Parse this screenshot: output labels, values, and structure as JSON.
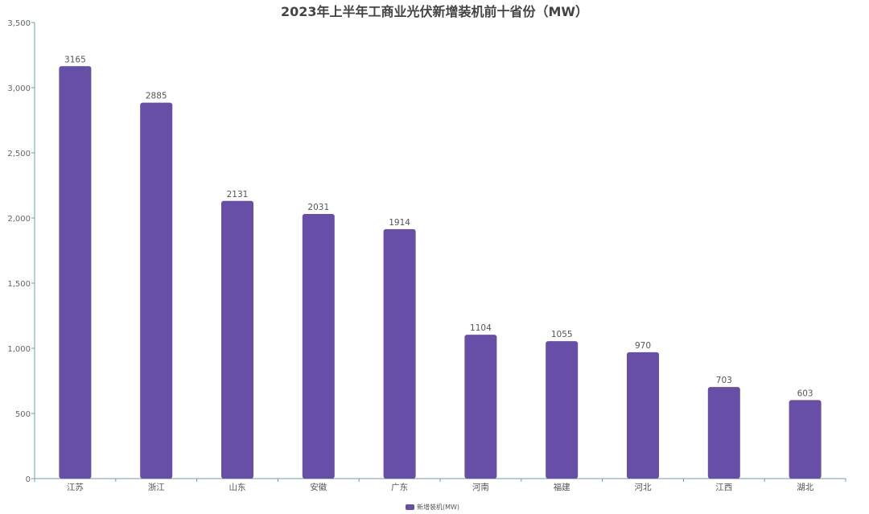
{
  "chart_data": {
    "type": "bar",
    "title": "2023年上半年工商业光伏新增装机前十省份（MW）",
    "categories": [
      "江苏",
      "浙江",
      "山东",
      "安徽",
      "广东",
      "河南",
      "福建",
      "河北",
      "江西",
      "湖北"
    ],
    "series": [
      {
        "name": "新增装机(MW)",
        "values": [
          3165,
          2885,
          2131,
          2031,
          1914,
          1104,
          1055,
          970,
          703,
          603
        ]
      }
    ],
    "ylim": [
      0,
      3500
    ],
    "yticks": [
      0,
      500,
      1000,
      1500,
      2000,
      2500,
      3000,
      3500
    ],
    "ytick_labels": [
      "0",
      "500",
      "1,000",
      "1,500",
      "2,000",
      "2,500",
      "3,000",
      "3,500"
    ],
    "grid": false,
    "legend": "bottom-center",
    "bar_color": "#674ea7",
    "axis_color": "#6e9fa8"
  }
}
